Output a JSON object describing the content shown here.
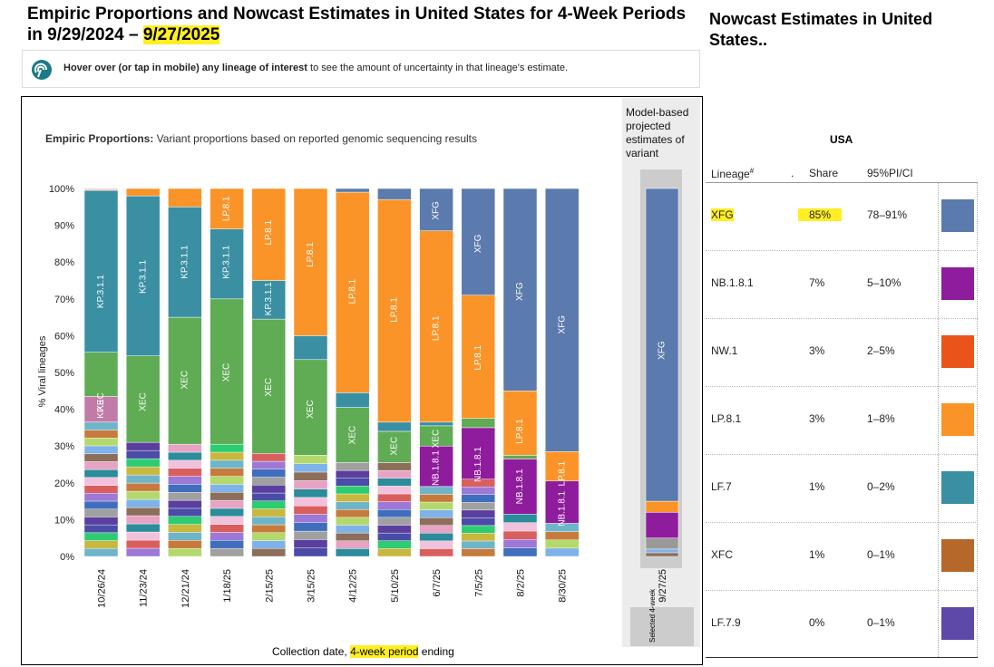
{
  "header": {
    "title_part1": "Empiric Proportions and Nowcast Estimates in United States for 4-Week Periods in 9/29/2024 – ",
    "title_date": "9/27/2025"
  },
  "hint": {
    "bold": "Hover over (or tap in mobile) any lineage of interest",
    "rest": " to see the amount of uncertainty in that lineage's estimate."
  },
  "chart_header": {
    "bold": "Empiric Proportions:",
    "rest": " Variant proportions based on reported genomic sequencing results"
  },
  "projected": {
    "title": "Model-based projected estimates of variant",
    "selected_label": "Selected 4-week",
    "date": "9/27/25"
  },
  "xaxis": {
    "title_part1": "Collection date, ",
    "title_hl": "4-week period",
    "title_part2": " ending"
  },
  "nowcast": {
    "title": "Nowcast Estimates in United States..",
    "region": "USA",
    "col_lineage": "Lineage",
    "col_lineage_sup": "#",
    "col_dot": ".",
    "col_share": "Share",
    "col_pi": "95%PI/CI",
    "rows": [
      {
        "lineage": "XFG",
        "share": "85%",
        "pi": "78–91%",
        "color": "#5b7aad",
        "highlight": true
      },
      {
        "lineage": "NB.1.8.1",
        "share": "7%",
        "pi": "5–10%",
        "color": "#8e1c9c",
        "highlight": false
      },
      {
        "lineage": "NW.1",
        "share": "3%",
        "pi": "2–5%",
        "color": "#e8541a",
        "highlight": false
      },
      {
        "lineage": "LP.8.1",
        "share": "3%",
        "pi": "1–8%",
        "color": "#fa9428",
        "highlight": false
      },
      {
        "lineage": "LF.7",
        "share": "1%",
        "pi": "0–2%",
        "color": "#3a8fa3",
        "highlight": false
      },
      {
        "lineage": "XFC",
        "share": "1%",
        "pi": "0–1%",
        "color": "#b5682a",
        "highlight": false
      },
      {
        "lineage": "LF.7.9",
        "share": "0%",
        "pi": "0–1%",
        "color": "#5e48a8",
        "highlight": false
      }
    ]
  },
  "chart_data": {
    "type": "bar",
    "stacked": true,
    "ylabel": "% Viral lineages",
    "xlabel": "Collection date, 4-week period ending",
    "ylim": [
      0,
      100
    ],
    "yticks": [
      "0%",
      "10%",
      "20%",
      "30%",
      "40%",
      "50%",
      "60%",
      "70%",
      "80%",
      "90%",
      "100%"
    ],
    "categories": [
      "10/26/24",
      "11/23/24",
      "12/21/24",
      "1/18/25",
      "2/15/25",
      "3/15/25",
      "4/12/25",
      "5/10/25",
      "6/7/25",
      "7/5/25",
      "8/2/25",
      "8/30/25"
    ],
    "series_colors": {
      "XFG": "#5b7aad",
      "NB.1.8.1": "#8e1c9c",
      "LP.8.1": "#fa9428",
      "XEC": "#5fac55",
      "KP.3.1.1": "#3a8fa3",
      "KP.3": "#c07ba8",
      "Other": "#7f7f7f"
    },
    "bars": [
      {
        "segments": [
          [
            "Other",
            36.5
          ],
          [
            "KP.3",
            7
          ],
          [
            "XEC",
            12
          ],
          [
            "KP.3.1.1",
            44
          ],
          [
            "LP.8.1",
            0.2
          ],
          [
            "Other",
            0.3
          ]
        ],
        "labels": [
          [
            "KP.3",
            40
          ],
          [
            "XEC",
            42
          ],
          [
            "KP.3.1.1",
            72
          ]
        ]
      },
      {
        "segments": [
          [
            "Other",
            31
          ],
          [
            "XEC",
            23.5
          ],
          [
            "KP.3.1.1",
            43.5
          ],
          [
            "LP.8.1",
            2
          ]
        ],
        "labels": [
          [
            "XEC",
            42
          ],
          [
            "KP.3.1.1",
            76
          ]
        ]
      },
      {
        "segments": [
          [
            "Other",
            30.5
          ],
          [
            "XEC",
            34.5
          ],
          [
            "KP.3.1.1",
            30
          ],
          [
            "LP.8.1",
            5
          ]
        ],
        "labels": [
          [
            "XEC",
            48
          ],
          [
            "KP.3.1.1",
            80
          ]
        ]
      },
      {
        "segments": [
          [
            "Other",
            30.5
          ],
          [
            "XEC",
            39.5
          ],
          [
            "KP.3.1.1",
            19
          ],
          [
            "LP.8.1",
            11
          ]
        ],
        "labels": [
          [
            "XEC",
            50
          ],
          [
            "KP.3.1.1",
            80
          ],
          [
            "LP.8.1",
            94.5
          ]
        ]
      },
      {
        "segments": [
          [
            "Other",
            28
          ],
          [
            "XEC",
            36.5
          ],
          [
            "KP.3.1.1",
            10.5
          ],
          [
            "LP.8.1",
            25
          ]
        ],
        "labels": [
          [
            "XEC",
            46
          ],
          [
            "KP.3.1.1",
            70
          ],
          [
            "LP.8.1",
            88
          ]
        ]
      },
      {
        "segments": [
          [
            "Other",
            27.5
          ],
          [
            "XEC",
            26
          ],
          [
            "KP.3.1.1",
            6.5
          ],
          [
            "LP.8.1",
            40
          ]
        ],
        "labels": [
          [
            "XEC",
            40
          ],
          [
            "LP.8.1",
            82
          ]
        ]
      },
      {
        "segments": [
          [
            "Other",
            25.5
          ],
          [
            "XEC",
            15
          ],
          [
            "KP.3.1.1",
            4
          ],
          [
            "LP.8.1",
            54.5
          ],
          [
            "XFG",
            1
          ]
        ],
        "labels": [
          [
            "XEC",
            33
          ],
          [
            "LP.8.1",
            72
          ]
        ]
      },
      {
        "segments": [
          [
            "Other",
            25.5
          ],
          [
            "XEC",
            8.5
          ],
          [
            "KP.3.1.1",
            2.5
          ],
          [
            "LP.8.1",
            60.5
          ],
          [
            "XFG",
            3
          ]
        ],
        "labels": [
          [
            "XEC",
            30
          ],
          [
            "LP.8.1",
            67
          ]
        ]
      },
      {
        "segments": [
          [
            "Other",
            19
          ],
          [
            "NB.1.8.1",
            11
          ],
          [
            "XEC",
            5.5
          ],
          [
            "KP.3.1.1",
            1
          ],
          [
            "LP.8.1",
            52
          ],
          [
            "XFG",
            11.5
          ]
        ],
        "labels": [
          [
            "NB.1.8.1",
            24
          ],
          [
            "XEC",
            32
          ],
          [
            "LP.8.1",
            62
          ],
          [
            "XFG",
            94
          ]
        ]
      },
      {
        "segments": [
          [
            "Other",
            21
          ],
          [
            "NB.1.8.1",
            14
          ],
          [
            "XEC",
            2.5
          ],
          [
            "LP.8.1",
            33.5
          ],
          [
            "XFG",
            29
          ]
        ],
        "labels": [
          [
            "NB.1.8.1",
            25
          ],
          [
            "LP.8.1",
            54
          ],
          [
            "XFG",
            85
          ]
        ]
      },
      {
        "segments": [
          [
            "Other",
            11.5
          ],
          [
            "NB.1.8.1",
            15
          ],
          [
            "XEC",
            1
          ],
          [
            "LP.8.1",
            17.5
          ],
          [
            "XFG",
            55
          ]
        ],
        "labels": [
          [
            "NB.1.8.1",
            19
          ],
          [
            "LP.8.1",
            34
          ],
          [
            "XFG",
            72
          ]
        ]
      },
      {
        "segments": [
          [
            "Other",
            9
          ],
          [
            "NB.1.8.1",
            11.5
          ],
          [
            "LP.8.1",
            8
          ],
          [
            "XFG",
            71.5
          ]
        ],
        "labels": [
          [
            "NB.1.8.1",
            13
          ],
          [
            "LP.8.1",
            22.5
          ],
          [
            "XFG",
            63
          ]
        ]
      }
    ],
    "projected_bar": {
      "category": "9/27/25",
      "segments": [
        [
          "Other",
          2
        ],
        [
          "NW.1",
          3
        ],
        [
          "NB.1.8.1",
          7
        ],
        [
          "LP.8.1",
          3
        ],
        [
          "XFG",
          85
        ]
      ],
      "labels": [
        [
          "XFG",
          56
        ]
      ]
    }
  }
}
